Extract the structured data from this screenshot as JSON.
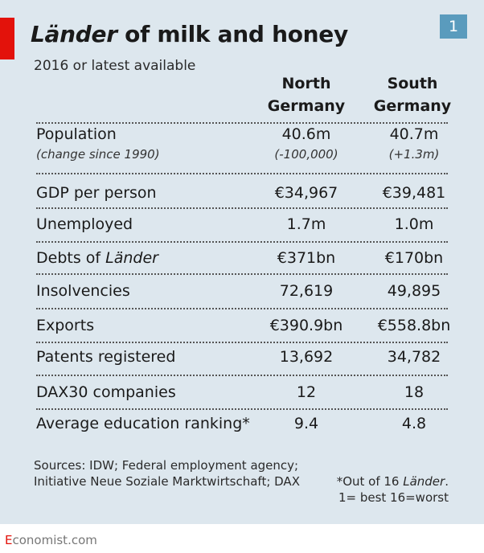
{
  "title_italic": "Länder",
  "title_rest": " of milk and honey",
  "chart_number": "1",
  "subtitle": "2016 or latest available",
  "columns": [
    {
      "line1": "North",
      "line2": "Germany"
    },
    {
      "line1": "South",
      "line2": "Germany"
    }
  ],
  "colors": {
    "background": "#dde7ee",
    "accent_red": "#e3120b",
    "badge_blue": "#5a9bbd"
  },
  "chart_data": {
    "type": "table",
    "title": "Länder of milk and honey",
    "subtitle": "2016 or latest available",
    "columns": [
      "North Germany",
      "South Germany"
    ],
    "rows": [
      {
        "label": "Population",
        "sublabel": "(change since 1990)",
        "north": "40.6m",
        "south": "40.7m",
        "north_sub": "(-100,000)",
        "south_sub": "(+1.3m)"
      },
      {
        "label": "GDP per person",
        "north": "€34,967",
        "south": "€39,481"
      },
      {
        "label": "Unemployed",
        "north": "1.7m",
        "south": "1.0m"
      },
      {
        "label_prefix": "Debts of ",
        "label_italic": "Länder",
        "north": "€371bn",
        "south": "€170bn"
      },
      {
        "label": "Insolvencies",
        "north": "72,619",
        "south": "49,895"
      },
      {
        "label": "Exports",
        "north": "€390.9bn",
        "south": "€558.8bn"
      },
      {
        "label": "Patents registered",
        "north": "13,692",
        "south": "34,782"
      },
      {
        "label": "DAX30 companies",
        "north": "12",
        "south": "18"
      },
      {
        "label": "Average education ranking*",
        "north": "9.4",
        "south": "4.8"
      }
    ]
  },
  "sources": "Sources: IDW; Federal employment agency; Initiative Neue Soziale Marktwirtschaft; DAX",
  "footnote": {
    "line1_prefix": "*Out of 16 ",
    "line1_italic": "Länder",
    "line1_suffix": ".",
    "line2": "1= best 16=worst"
  },
  "brand": {
    "first_letter": "E",
    "rest": "conomist.com"
  }
}
